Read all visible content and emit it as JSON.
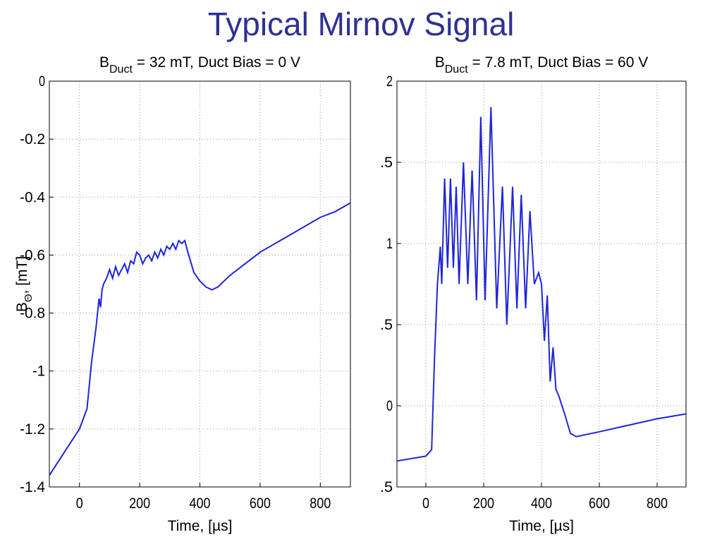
{
  "title": "Typical Mirnov Signal",
  "chart_data": [
    {
      "type": "line",
      "title": "B",
      "title_sub": "Duct",
      "title_rest": " = 32 mT,  Duct Bias = 0 V",
      "xlabel": "Time, [µs]",
      "ylabel": "B",
      "ylabel_sub": "Θ",
      "ylabel_rest": ", [mT]",
      "xlim": [
        -100,
        900
      ],
      "ylim": [
        -1.4,
        0
      ],
      "xticks": [
        0,
        200,
        400,
        600,
        800
      ],
      "yticks": [
        0,
        -0.2,
        -0.4,
        -0.6,
        -0.8,
        -1,
        -1.2,
        -1.4
      ],
      "grid": true,
      "color": "#1f26d6",
      "x": [
        -100,
        -50,
        0,
        25,
        40,
        55,
        60,
        65,
        70,
        75,
        80,
        90,
        100,
        110,
        120,
        130,
        140,
        150,
        160,
        170,
        180,
        190,
        200,
        210,
        220,
        230,
        240,
        250,
        260,
        270,
        280,
        290,
        300,
        310,
        320,
        330,
        340,
        350,
        360,
        380,
        400,
        420,
        440,
        460,
        500,
        550,
        600,
        650,
        700,
        750,
        800,
        850,
        900
      ],
      "values": [
        -1.36,
        -1.28,
        -1.2,
        -1.13,
        -0.97,
        -0.85,
        -0.8,
        -0.75,
        -0.78,
        -0.72,
        -0.7,
        -0.68,
        -0.65,
        -0.68,
        -0.64,
        -0.67,
        -0.65,
        -0.63,
        -0.66,
        -0.62,
        -0.63,
        -0.59,
        -0.6,
        -0.63,
        -0.61,
        -0.6,
        -0.62,
        -0.59,
        -0.61,
        -0.58,
        -0.6,
        -0.57,
        -0.58,
        -0.56,
        -0.58,
        -0.55,
        -0.56,
        -0.55,
        -0.59,
        -0.66,
        -0.69,
        -0.71,
        -0.72,
        -0.71,
        -0.67,
        -0.63,
        -0.59,
        -0.56,
        -0.53,
        -0.5,
        -0.47,
        -0.45,
        -0.42
      ]
    },
    {
      "type": "line",
      "title": "B",
      "title_sub": "Duct",
      "title_rest": " = 7.8 mT,  Duct Bias = 60 V",
      "xlabel": "Time, [µs]",
      "xlim": [
        -100,
        900
      ],
      "ylim": [
        -0.5,
        2
      ],
      "xticks": [
        0,
        200,
        400,
        600,
        800
      ],
      "yticks": [
        2,
        {
          "value": 1.5,
          "label": ".5"
        },
        1,
        {
          "value": 0.5,
          "label": ".5"
        },
        0,
        {
          "value": -0.5,
          "label": ".5"
        }
      ],
      "grid": true,
      "color": "#1f26d6",
      "x": [
        -100,
        0,
        20,
        30,
        40,
        50,
        55,
        65,
        75,
        85,
        95,
        105,
        115,
        130,
        145,
        160,
        175,
        190,
        205,
        225,
        245,
        265,
        280,
        300,
        315,
        330,
        345,
        360,
        375,
        390,
        400,
        410,
        420,
        430,
        440,
        450,
        460,
        480,
        500,
        520,
        600,
        700,
        800,
        900
      ],
      "values": [
        -0.34,
        -0.31,
        -0.27,
        0.3,
        0.75,
        0.98,
        0.75,
        1.4,
        0.85,
        1.4,
        0.85,
        1.35,
        0.75,
        1.5,
        0.75,
        1.45,
        0.65,
        1.78,
        0.65,
        1.84,
        0.6,
        1.35,
        0.5,
        1.35,
        0.6,
        1.3,
        0.6,
        1.2,
        0.75,
        0.82,
        0.75,
        0.4,
        0.68,
        0.15,
        0.36,
        0.1,
        0.06,
        -0.05,
        -0.17,
        -0.19,
        -0.16,
        -0.12,
        -0.08,
        -0.05
      ]
    }
  ]
}
